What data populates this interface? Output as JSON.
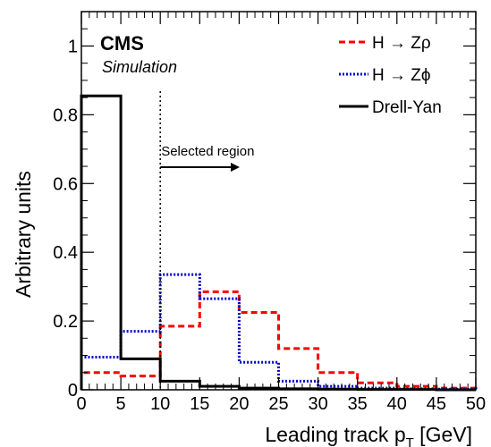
{
  "chart_data": {
    "type": "step-histogram",
    "xlabel_main": "Leading track p",
    "xlabel_sub": "T",
    "xlabel_unit": " [GeV]",
    "ylabel": "Arbitrary units",
    "xlim": [
      0,
      50
    ],
    "ylim": [
      0,
      1.1
    ],
    "x_ticks": [
      0,
      5,
      10,
      15,
      20,
      25,
      30,
      35,
      40,
      45,
      50
    ],
    "x_tick_labels": [
      "0",
      "5",
      "10",
      "15",
      "20",
      "25",
      "30",
      "35",
      "40",
      "45",
      "50"
    ],
    "y_ticks": [
      0,
      0.2,
      0.4,
      0.6,
      0.8,
      1
    ],
    "y_tick_labels": [
      "0",
      "0.2",
      "0.4",
      "0.6",
      "0.8",
      "1"
    ],
    "bin_edges": [
      0,
      5,
      10,
      15,
      20,
      25,
      30,
      35,
      40,
      45,
      50
    ],
    "series": [
      {
        "name": "H → Zρ",
        "style": "dashed",
        "color": "#ff0000",
        "values": [
          0.05,
          0.04,
          0.185,
          0.285,
          0.225,
          0.12,
          0.05,
          0.02,
          0.01,
          0.005
        ]
      },
      {
        "name": "H → Zϕ",
        "style": "dotted",
        "color": "#0000cc",
        "values": [
          0.095,
          0.17,
          0.335,
          0.265,
          0.08,
          0.025,
          0.01,
          0.005,
          0.003,
          0.002
        ]
      },
      {
        "name": "Drell-Yan",
        "style": "solid",
        "color": "#000000",
        "values": [
          0.855,
          0.09,
          0.025,
          0.01,
          0.005,
          0.003,
          0.002,
          0.001,
          0.001,
          0.0
        ]
      }
    ],
    "annotation": {
      "text": "Selected region",
      "cut_x": 10
    },
    "cms_label": "CMS",
    "cms_sublabel": "Simulation",
    "legend_position": "top-right"
  }
}
